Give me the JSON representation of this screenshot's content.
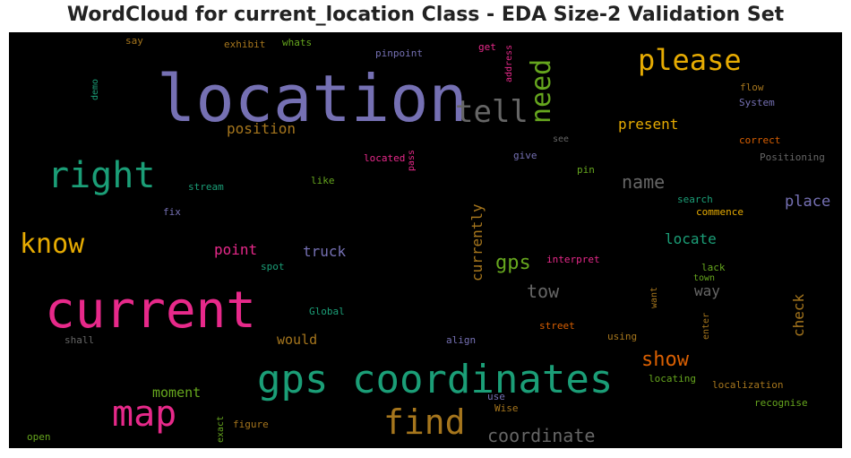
{
  "title": "WordCloud for current_location Class - EDA Size-2 Validation Set",
  "words": [
    {
      "text": "location",
      "color": "#7570b3"
    },
    {
      "text": "current",
      "color": "#e7298a"
    },
    {
      "text": "gps coordinates",
      "color": "#1b9e77"
    },
    {
      "text": "right",
      "color": "#1b9e77"
    },
    {
      "text": "please",
      "color": "#e6ab02"
    },
    {
      "text": "tell",
      "color": "#666666"
    },
    {
      "text": "need",
      "color": "#66a61e"
    },
    {
      "text": "know",
      "color": "#e6ab02"
    },
    {
      "text": "map",
      "color": "#e7298a"
    },
    {
      "text": "find",
      "color": "#a6761d"
    },
    {
      "text": "show",
      "color": "#d95f02"
    },
    {
      "text": "coordinate",
      "color": "#666666"
    },
    {
      "text": "name",
      "color": "#666666"
    },
    {
      "text": "gps",
      "color": "#66a61e"
    },
    {
      "text": "tow",
      "color": "#666666"
    },
    {
      "text": "place",
      "color": "#7570b3"
    },
    {
      "text": "locate",
      "color": "#1b9e77"
    },
    {
      "text": "position",
      "color": "#a6761d"
    },
    {
      "text": "present",
      "color": "#e6ab02"
    },
    {
      "text": "currently",
      "color": "#a6761d"
    },
    {
      "text": "point",
      "color": "#e7298a"
    },
    {
      "text": "truck",
      "color": "#7570b3"
    },
    {
      "text": "way",
      "color": "#666666"
    },
    {
      "text": "check",
      "color": "#a6761d"
    },
    {
      "text": "moment",
      "color": "#66a61e"
    },
    {
      "text": "would",
      "color": "#a6761d"
    },
    {
      "text": "say",
      "color": "#a6761d"
    },
    {
      "text": "exhibit",
      "color": "#a6761d"
    },
    {
      "text": "whats",
      "color": "#66a61e"
    },
    {
      "text": "pinpoint",
      "color": "#7570b3"
    },
    {
      "text": "get",
      "color": "#e7298a"
    },
    {
      "text": "address",
      "color": "#e7298a"
    },
    {
      "text": "demo",
      "color": "#1b9e77"
    },
    {
      "text": "flow",
      "color": "#a6761d"
    },
    {
      "text": "System",
      "color": "#7570b3"
    },
    {
      "text": "see",
      "color": "#666666"
    },
    {
      "text": "correct",
      "color": "#d95f02"
    },
    {
      "text": "located",
      "color": "#e7298a"
    },
    {
      "text": "pass",
      "color": "#e7298a"
    },
    {
      "text": "give",
      "color": "#7570b3"
    },
    {
      "text": "Positioning",
      "color": "#666666"
    },
    {
      "text": "pin",
      "color": "#66a61e"
    },
    {
      "text": "stream",
      "color": "#1b9e77"
    },
    {
      "text": "like",
      "color": "#66a61e"
    },
    {
      "text": "search",
      "color": "#1b9e77"
    },
    {
      "text": "commence",
      "color": "#e6ab02"
    },
    {
      "text": "fix",
      "color": "#7570b3"
    },
    {
      "text": "interpret",
      "color": "#e7298a"
    },
    {
      "text": "spot",
      "color": "#1b9e77"
    },
    {
      "text": "lack",
      "color": "#66a61e"
    },
    {
      "text": "town",
      "color": "#66a61e"
    },
    {
      "text": "want",
      "color": "#a6761d"
    },
    {
      "text": "Global",
      "color": "#1b9e77"
    },
    {
      "text": "enter",
      "color": "#a6761d"
    },
    {
      "text": "shall",
      "color": "#666666"
    },
    {
      "text": "align",
      "color": "#7570b3"
    },
    {
      "text": "street",
      "color": "#d95f02"
    },
    {
      "text": "using",
      "color": "#a6761d"
    },
    {
      "text": "locating",
      "color": "#66a61e"
    },
    {
      "text": "localization",
      "color": "#a6761d"
    },
    {
      "text": "use",
      "color": "#7570b3"
    },
    {
      "text": "Wise",
      "color": "#a6761d"
    },
    {
      "text": "recognise",
      "color": "#66a61e"
    },
    {
      "text": "exact",
      "color": "#66a61e"
    },
    {
      "text": "figure",
      "color": "#a6761d"
    },
    {
      "text": "open",
      "color": "#66a61e"
    }
  ]
}
